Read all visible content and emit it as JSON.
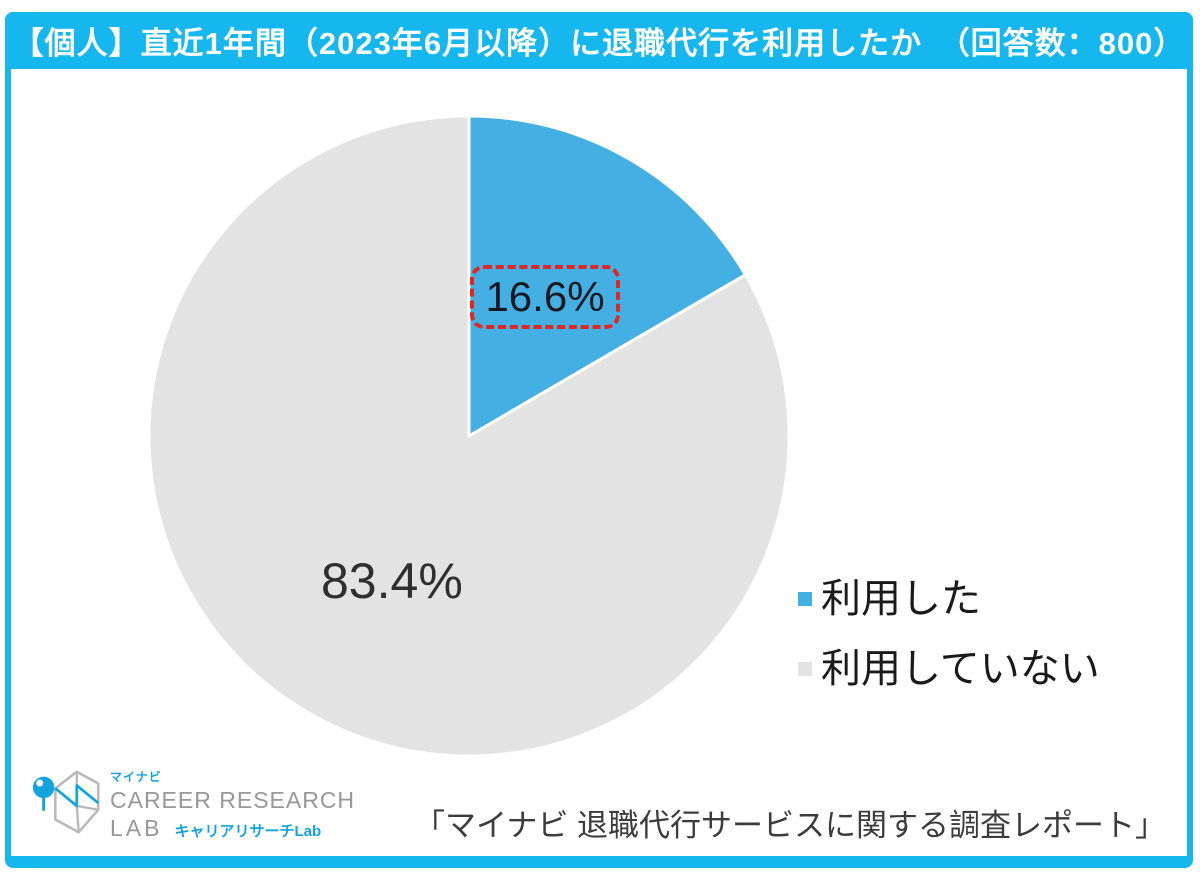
{
  "header": {
    "title": "【個人】直近1年間（2023年6月以降）に退職代行を利用したか　（回答数：800）"
  },
  "chart_data": {
    "type": "pie",
    "title": "【個人】直近1年間（2023年6月以降）に退職代行を利用したか",
    "sample_note": "回答数：800",
    "labels": [
      "利用した",
      "利用していない"
    ],
    "values": [
      16.6,
      83.4
    ],
    "unit": "%",
    "colors": [
      "#44afe3",
      "#e3e3e4"
    ],
    "start_angle_deg": 0,
    "direction": "clockwise",
    "legend_position": "right",
    "data_labels": [
      "16.6%",
      "83.4%"
    ],
    "highlight": "16.6% value outlined with red dashed box"
  },
  "footer": {
    "citation": "「マイナビ 退職代行サービスに関する調査レポート」"
  },
  "logo": {
    "brand_small": "マイナビ",
    "line1": "CAREER RESEARCH",
    "line2": "LAB",
    "line2_suffix": "キャリアリサーチLab"
  },
  "colors": {
    "frame": "#16b7ee",
    "highlight_red": "#e02722",
    "logo_blue": "#13a3dd",
    "pie_used": "#44afe3",
    "pie_not_used": "#e3e3e4"
  }
}
